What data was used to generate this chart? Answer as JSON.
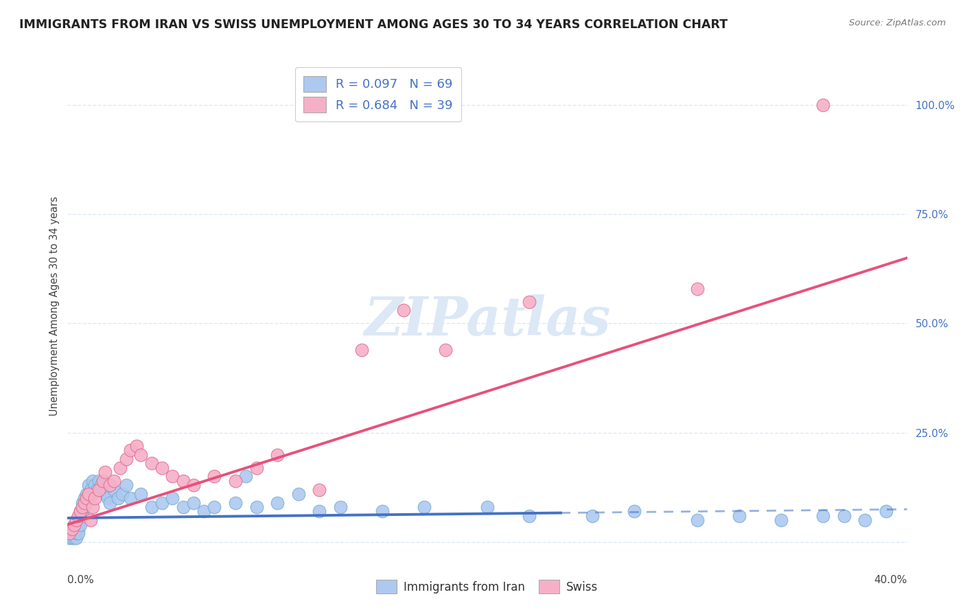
{
  "title": "IMMIGRANTS FROM IRAN VS SWISS UNEMPLOYMENT AMONG AGES 30 TO 34 YEARS CORRELATION CHART",
  "source": "Source: ZipAtlas.com",
  "ylabel": "Unemployment Among Ages 30 to 34 years",
  "xlim": [
    0.0,
    0.4
  ],
  "ylim": [
    -0.02,
    1.1
  ],
  "yticks": [
    0.0,
    0.25,
    0.5,
    0.75,
    1.0
  ],
  "ytick_labels": [
    "",
    "25.0%",
    "50.0%",
    "75.0%",
    "100.0%"
  ],
  "series1_color": "#adc9f0",
  "series1_edge": "#7aafd4",
  "series2_color": "#f5b0c8",
  "series2_edge": "#e07090",
  "trend1_color": "#4472c4",
  "trend2_color": "#e8507a",
  "background_color": "#ffffff",
  "watermark_color": "#dce8f5",
  "grid_color": "#dce8f5",
  "title_fontsize": 12.5,
  "axis_label_fontsize": 10.5,
  "tick_fontsize": 11,
  "series1_x": [
    0.001,
    0.001,
    0.002,
    0.002,
    0.003,
    0.003,
    0.003,
    0.004,
    0.004,
    0.004,
    0.005,
    0.005,
    0.005,
    0.006,
    0.006,
    0.006,
    0.007,
    0.007,
    0.007,
    0.008,
    0.008,
    0.009,
    0.009,
    0.01,
    0.01,
    0.011,
    0.012,
    0.012,
    0.013,
    0.014,
    0.015,
    0.016,
    0.017,
    0.018,
    0.019,
    0.02,
    0.022,
    0.024,
    0.026,
    0.028,
    0.03,
    0.035,
    0.04,
    0.045,
    0.05,
    0.055,
    0.06,
    0.065,
    0.07,
    0.08,
    0.085,
    0.09,
    0.1,
    0.11,
    0.12,
    0.13,
    0.15,
    0.17,
    0.2,
    0.22,
    0.25,
    0.27,
    0.3,
    0.32,
    0.34,
    0.36,
    0.37,
    0.38,
    0.39
  ],
  "series1_y": [
    0.01,
    0.02,
    0.01,
    0.03,
    0.01,
    0.02,
    0.04,
    0.01,
    0.03,
    0.02,
    0.05,
    0.03,
    0.02,
    0.07,
    0.05,
    0.04,
    0.09,
    0.07,
    0.06,
    0.1,
    0.08,
    0.11,
    0.09,
    0.13,
    0.1,
    0.12,
    0.14,
    0.11,
    0.13,
    0.12,
    0.14,
    0.13,
    0.12,
    0.11,
    0.1,
    0.09,
    0.12,
    0.1,
    0.11,
    0.13,
    0.1,
    0.11,
    0.08,
    0.09,
    0.1,
    0.08,
    0.09,
    0.07,
    0.08,
    0.09,
    0.15,
    0.08,
    0.09,
    0.11,
    0.07,
    0.08,
    0.07,
    0.08,
    0.08,
    0.06,
    0.06,
    0.07,
    0.05,
    0.06,
    0.05,
    0.06,
    0.06,
    0.05,
    0.07
  ],
  "series2_x": [
    0.001,
    0.002,
    0.003,
    0.004,
    0.005,
    0.006,
    0.007,
    0.008,
    0.009,
    0.01,
    0.011,
    0.012,
    0.013,
    0.015,
    0.017,
    0.018,
    0.02,
    0.022,
    0.025,
    0.028,
    0.03,
    0.033,
    0.035,
    0.04,
    0.045,
    0.05,
    0.055,
    0.06,
    0.07,
    0.08,
    0.09,
    0.1,
    0.12,
    0.14,
    0.16,
    0.18,
    0.22,
    0.3,
    0.36
  ],
  "series2_y": [
    0.02,
    0.03,
    0.04,
    0.05,
    0.06,
    0.07,
    0.08,
    0.09,
    0.1,
    0.11,
    0.05,
    0.08,
    0.1,
    0.12,
    0.14,
    0.16,
    0.13,
    0.14,
    0.17,
    0.19,
    0.21,
    0.22,
    0.2,
    0.18,
    0.17,
    0.15,
    0.14,
    0.13,
    0.15,
    0.14,
    0.17,
    0.2,
    0.12,
    0.44,
    0.53,
    0.44,
    0.55,
    0.58,
    1.0
  ],
  "trend1_y_at_0": 0.055,
  "trend1_y_at_40": 0.075,
  "trend1_solid_end_x": 0.235,
  "trend2_y_at_0": 0.04,
  "trend2_y_at_40": 0.65
}
